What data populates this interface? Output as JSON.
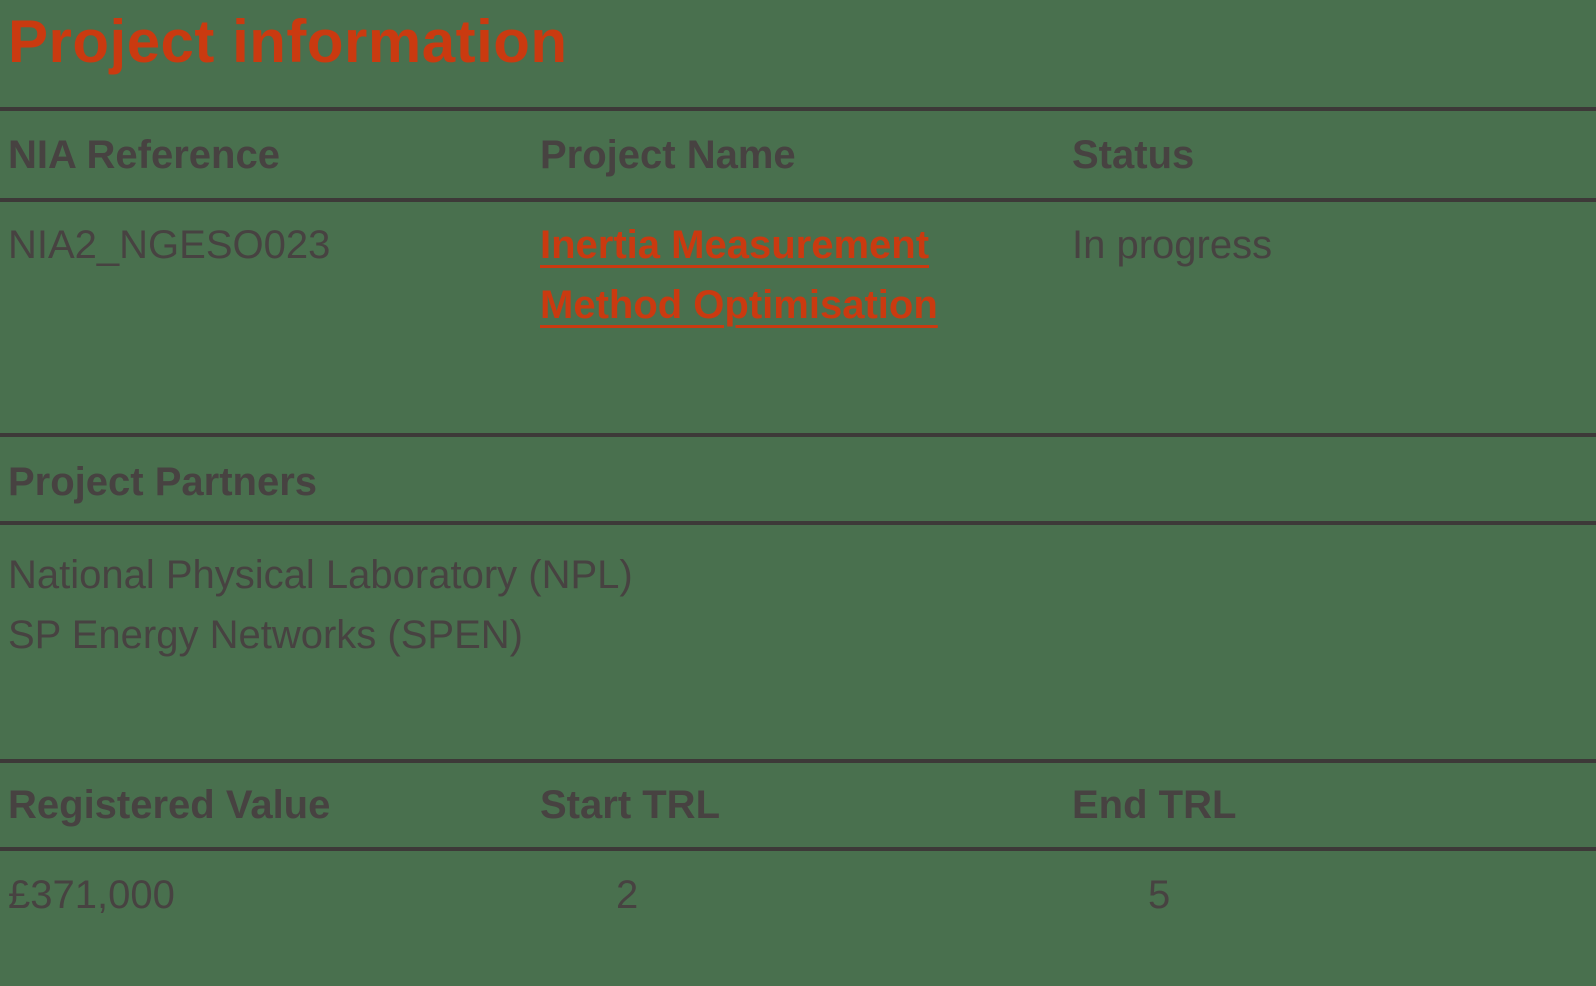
{
  "page": {
    "title": "Project information",
    "colors": {
      "background": "#49704e",
      "accent_red": "#ca3a10",
      "text_gray": "#474241",
      "divider_gray": "#3d3938"
    }
  },
  "project_table": {
    "headers": [
      "NIA Reference",
      "Project Name",
      "Status"
    ],
    "row": {
      "nia_reference": "NIA2_NGESO023",
      "project_name": "Inertia Measurement Method Optimisation",
      "status": "In progress"
    }
  },
  "partners_table": {
    "header": "Project Partners",
    "partners": [
      "National Physical Laboratory (NPL)",
      "SP Energy Networks (SPEN)"
    ]
  },
  "value_table": {
    "headers": [
      "Registered Value",
      "Start TRL",
      "End TRL"
    ],
    "row": {
      "registered_value": "£371,000",
      "start_trl": "2",
      "end_trl": "5"
    }
  }
}
